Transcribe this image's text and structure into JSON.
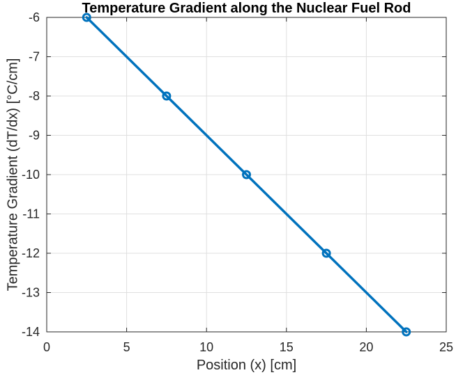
{
  "chart_data": {
    "type": "line",
    "title": "Temperature Gradient along the Nuclear Fuel Rod",
    "xlabel": "Position (x) [cm]",
    "ylabel": "Temperature Gradient (dT/dx) [°C/cm]",
    "xlim": [
      0,
      25
    ],
    "ylim": [
      -14,
      -6
    ],
    "xticks": [
      0,
      5,
      10,
      15,
      20,
      25
    ],
    "yticks": [
      -14,
      -13,
      -12,
      -11,
      -10,
      -9,
      -8,
      -7,
      -6
    ],
    "xtick_labels": [
      "0",
      "5",
      "10",
      "15",
      "20",
      "25"
    ],
    "ytick_labels": [
      "-14",
      "-13",
      "-12",
      "-11",
      "-10",
      "-9",
      "-8",
      "-7",
      "-6"
    ],
    "grid": true,
    "series": [
      {
        "x": [
          2.5,
          7.5,
          12.5,
          17.5,
          22.5
        ],
        "y": [
          -6,
          -8,
          -10,
          -12,
          -14
        ],
        "color": "#0072bd",
        "marker": "circle"
      }
    ]
  }
}
